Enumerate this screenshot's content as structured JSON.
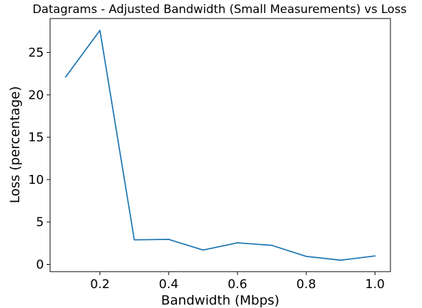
{
  "chart_data": {
    "type": "line",
    "title": "Datagrams - Adjusted Bandwidth (Small Measurements) vs Loss",
    "xlabel": "Bandwidth (Mbps)",
    "ylabel": "Loss (percentage)",
    "xlim": [
      0.055,
      1.045
    ],
    "ylim": [
      -0.85,
      29.0
    ],
    "xticks": [
      0.2,
      0.4,
      0.6,
      0.8,
      1.0
    ],
    "xtick_labels": [
      "0.2",
      "0.4",
      "0.6",
      "0.8",
      "1.0"
    ],
    "yticks": [
      0,
      5,
      10,
      15,
      20,
      25
    ],
    "ytick_labels": [
      "0",
      "5",
      "10",
      "15",
      "20",
      "25"
    ],
    "grid": false,
    "series": [
      {
        "color": "#1f77b4",
        "x": [
          0.1,
          0.2,
          0.3,
          0.4,
          0.5,
          0.6,
          0.7,
          0.8,
          0.9,
          1.0
        ],
        "y": [
          22.1,
          27.6,
          2.9,
          2.95,
          1.7,
          2.55,
          2.25,
          0.95,
          0.5,
          1.0
        ]
      }
    ]
  }
}
